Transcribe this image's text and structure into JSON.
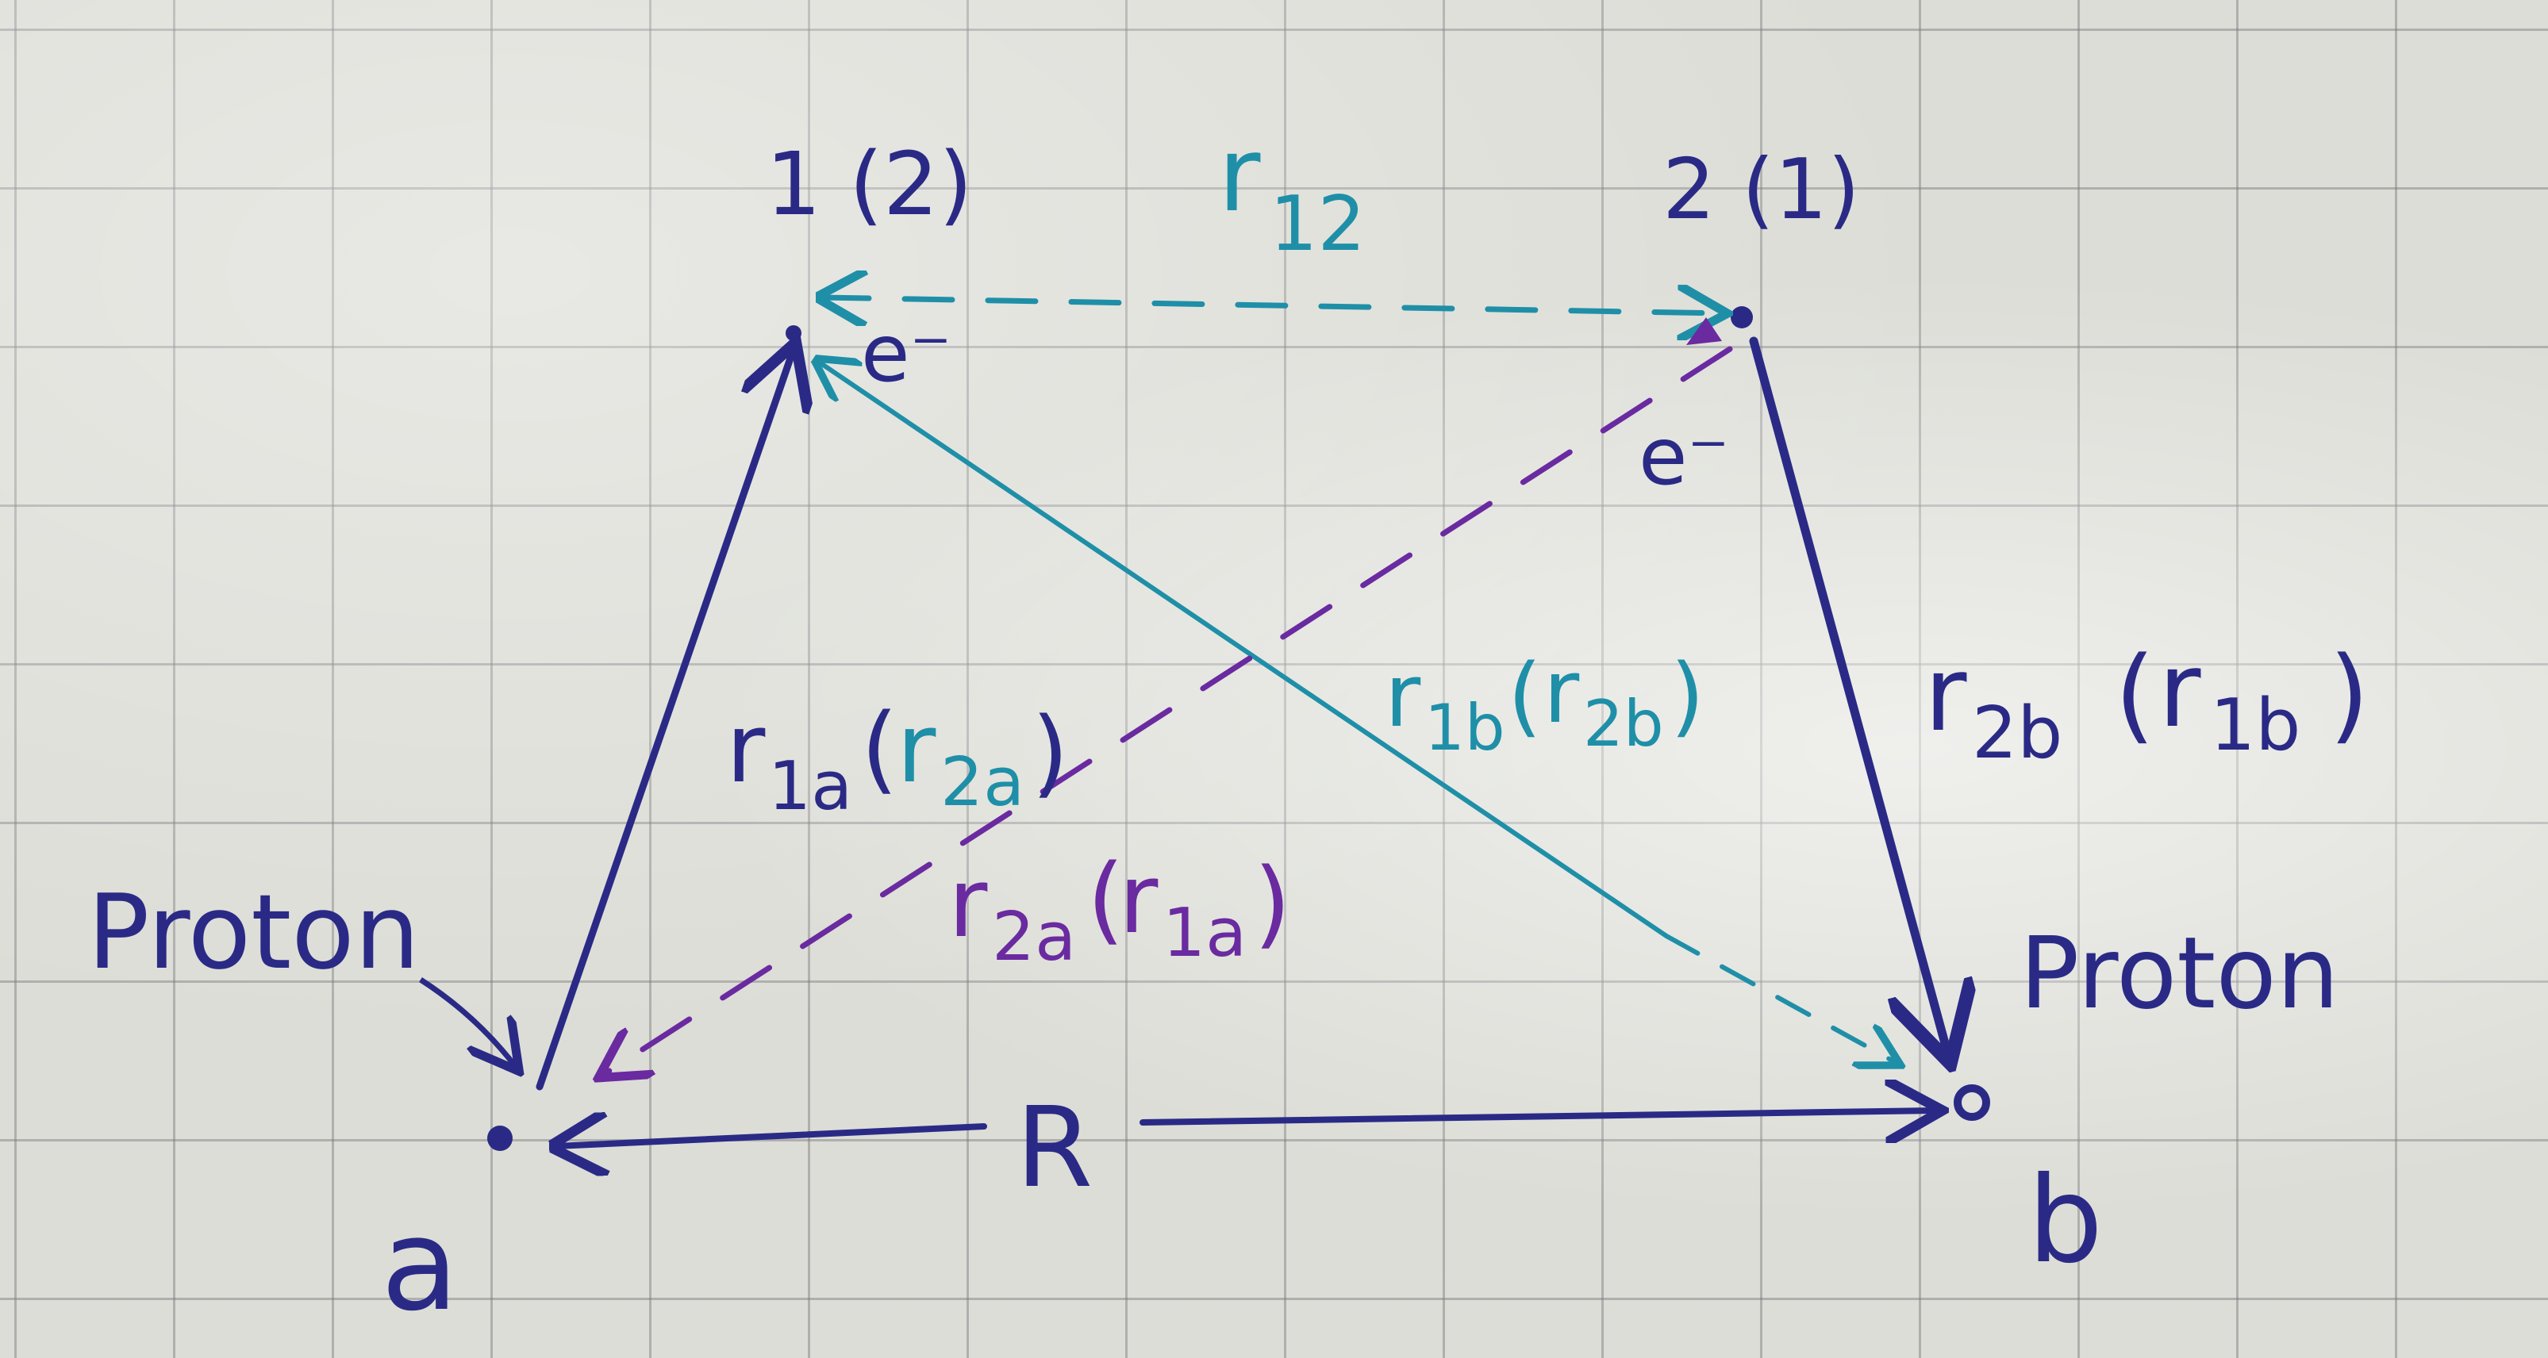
{
  "colors": {
    "navy": "#2a2a86",
    "teal": "#1f8fa8",
    "violet": "#6a2aa0",
    "paper": "#dcddd6"
  },
  "labels": {
    "point_1": "1 (2)",
    "point_2": "2 (1)",
    "electron_1": "e⁻",
    "electron_2": "e⁻",
    "r12": {
      "base": "r",
      "sub": "12"
    },
    "r1a": {
      "base": "r",
      "sub": "1a",
      "paren_base": "r",
      "paren_sub": "2a"
    },
    "r2a": {
      "base": "r",
      "sub": "2a",
      "paren_base": "r",
      "paren_sub": "1a"
    },
    "r1b": {
      "base": "r",
      "sub": "1b",
      "paren_base": "r",
      "paren_sub": "2b"
    },
    "r2b": {
      "base": "r",
      "sub": "2b",
      "paren_base": "r",
      "paren_sub": "1b"
    },
    "proton_left": "Proton",
    "proton_right": "Proton",
    "distance": "R",
    "point_a": "a",
    "point_b": "b"
  }
}
